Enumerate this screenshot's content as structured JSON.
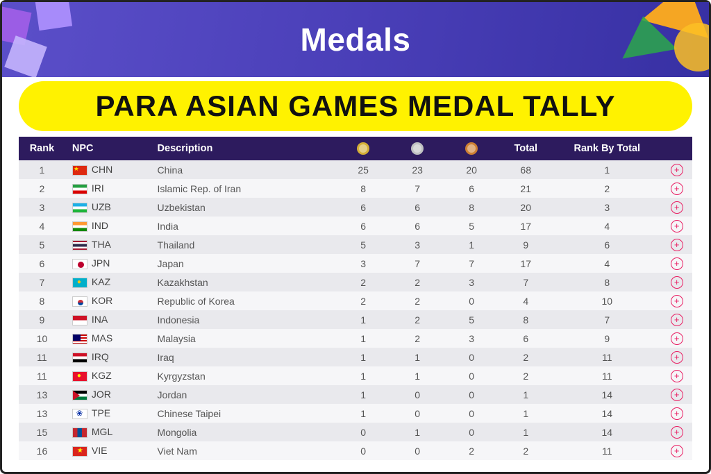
{
  "banner": {
    "title": "Medals"
  },
  "sub_banner": {
    "text": "PARA ASIAN GAMES MEDAL TALLY"
  },
  "colors": {
    "header_bg": "#2d1b5e",
    "row_even": "#e9e9ed",
    "row_odd": "#f6f6f8",
    "accent": "#e91e63",
    "gold": "#d4af37",
    "silver": "#bfc1c2",
    "bronze": "#cd7f32",
    "highlight_bg": "#fff200"
  },
  "table": {
    "columns": {
      "rank": "Rank",
      "npc": "NPC",
      "description": "Description",
      "gold_icon": "gold-medal-icon",
      "silver_icon": "silver-medal-icon",
      "bronze_icon": "bronze-medal-icon",
      "total": "Total",
      "rank_by_total": "Rank By Total"
    },
    "rows": [
      {
        "rank": 1,
        "code": "CHN",
        "desc": "China",
        "g": 25,
        "s": 23,
        "b": 20,
        "total": 68,
        "rbt": 1
      },
      {
        "rank": 2,
        "code": "IRI",
        "desc": "Islamic Rep. of Iran",
        "g": 8,
        "s": 7,
        "b": 6,
        "total": 21,
        "rbt": 2
      },
      {
        "rank": 3,
        "code": "UZB",
        "desc": "Uzbekistan",
        "g": 6,
        "s": 6,
        "b": 8,
        "total": 20,
        "rbt": 3
      },
      {
        "rank": 4,
        "code": "IND",
        "desc": "India",
        "g": 6,
        "s": 6,
        "b": 5,
        "total": 17,
        "rbt": 4
      },
      {
        "rank": 5,
        "code": "THA",
        "desc": "Thailand",
        "g": 5,
        "s": 3,
        "b": 1,
        "total": 9,
        "rbt": 6
      },
      {
        "rank": 6,
        "code": "JPN",
        "desc": "Japan",
        "g": 3,
        "s": 7,
        "b": 7,
        "total": 17,
        "rbt": 4
      },
      {
        "rank": 7,
        "code": "KAZ",
        "desc": "Kazakhstan",
        "g": 2,
        "s": 2,
        "b": 3,
        "total": 7,
        "rbt": 8
      },
      {
        "rank": 8,
        "code": "KOR",
        "desc": "Republic of Korea",
        "g": 2,
        "s": 2,
        "b": 0,
        "total": 4,
        "rbt": 10
      },
      {
        "rank": 9,
        "code": "INA",
        "desc": "Indonesia",
        "g": 1,
        "s": 2,
        "b": 5,
        "total": 8,
        "rbt": 7
      },
      {
        "rank": 10,
        "code": "MAS",
        "desc": "Malaysia",
        "g": 1,
        "s": 2,
        "b": 3,
        "total": 6,
        "rbt": 9
      },
      {
        "rank": 11,
        "code": "IRQ",
        "desc": "Iraq",
        "g": 1,
        "s": 1,
        "b": 0,
        "total": 2,
        "rbt": 11
      },
      {
        "rank": 11,
        "code": "KGZ",
        "desc": "Kyrgyzstan",
        "g": 1,
        "s": 1,
        "b": 0,
        "total": 2,
        "rbt": 11
      },
      {
        "rank": 13,
        "code": "JOR",
        "desc": "Jordan",
        "g": 1,
        "s": 0,
        "b": 0,
        "total": 1,
        "rbt": 14
      },
      {
        "rank": 13,
        "code": "TPE",
        "desc": "Chinese Taipei",
        "g": 1,
        "s": 0,
        "b": 0,
        "total": 1,
        "rbt": 14
      },
      {
        "rank": 15,
        "code": "MGL",
        "desc": "Mongolia",
        "g": 0,
        "s": 1,
        "b": 0,
        "total": 1,
        "rbt": 14
      },
      {
        "rank": 16,
        "code": "VIE",
        "desc": "Viet Nam",
        "g": 0,
        "s": 0,
        "b": 2,
        "total": 2,
        "rbt": 11
      }
    ]
  }
}
